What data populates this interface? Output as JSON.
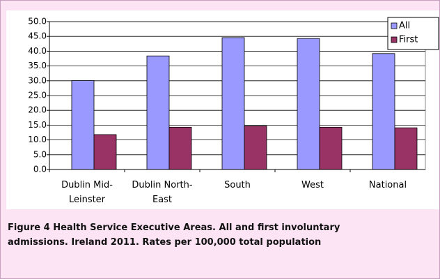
{
  "chart_data": {
    "type": "bar",
    "caption": "Figure 4   Health Service Executive Areas. All and first involuntary admissions.  Ireland 2011. Rates per 100,000 total population",
    "categories": [
      "Dublin Mid-Leinster",
      "Dublin North-East",
      "South",
      "West",
      "National"
    ],
    "series": [
      {
        "name": "All",
        "color": "#9999ff",
        "values": [
          30.1,
          38.4,
          44.6,
          44.3,
          39.2
        ]
      },
      {
        "name": "First",
        "color": "#993366",
        "values": [
          11.8,
          14.3,
          14.7,
          14.3,
          14.1
        ]
      }
    ],
    "ylim": [
      0,
      50
    ],
    "yticks": [
      {
        "value": 0,
        "label": "0.0"
      },
      {
        "value": 5,
        "label": "5.0"
      },
      {
        "value": 10,
        "label": "10.0"
      },
      {
        "value": 15,
        "label": "15.0"
      },
      {
        "value": 20,
        "label": "20.0"
      },
      {
        "value": 25,
        "label": "25.0"
      },
      {
        "value": 30,
        "label": "30.0"
      },
      {
        "value": 35,
        "label": "35.0"
      },
      {
        "value": 40,
        "label": "40.0"
      },
      {
        "value": 45,
        "label": "45.0"
      },
      {
        "value": 50,
        "label": "50.0"
      }
    ],
    "grid": true,
    "legend": "top-right"
  }
}
